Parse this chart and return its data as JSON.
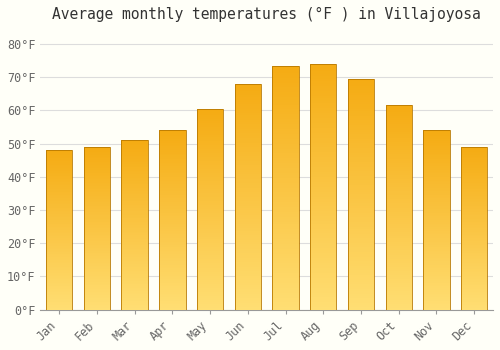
{
  "months": [
    "Jan",
    "Feb",
    "Mar",
    "Apr",
    "May",
    "Jun",
    "Jul",
    "Aug",
    "Sep",
    "Oct",
    "Nov",
    "Dec"
  ],
  "values": [
    48,
    49,
    51,
    54,
    60.5,
    68,
    73.5,
    74,
    69.5,
    61.5,
    54,
    49
  ],
  "bar_color_top": "#F5A800",
  "bar_color_bottom": "#FFD966",
  "title": "Average monthly temperatures (°F ) in Villajoyosa",
  "ylim": [
    0,
    85
  ],
  "yticks": [
    0,
    10,
    20,
    30,
    40,
    50,
    60,
    70,
    80
  ],
  "ytick_labels": [
    "0°F",
    "10°F",
    "20°F",
    "30°F",
    "40°F",
    "50°F",
    "60°F",
    "70°F",
    "80°F"
  ],
  "bg_color": "#FFFFF8",
  "grid_color": "#DDDDDD",
  "title_fontsize": 10.5,
  "tick_fontsize": 8.5,
  "bar_width": 0.7,
  "n_gradient_steps": 100
}
